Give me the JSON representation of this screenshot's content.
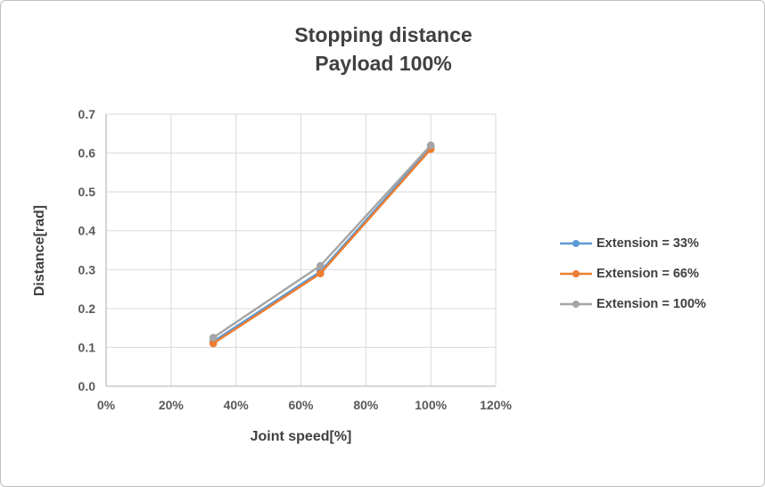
{
  "chart_data": {
    "type": "line",
    "title": "Stopping distance",
    "subtitle": "Payload 100%",
    "xlabel": "Joint speed[%]",
    "ylabel": "Distance[rad]",
    "xlim": [
      0,
      120
    ],
    "ylim": [
      0,
      0.7
    ],
    "x_ticks": [
      0,
      20,
      40,
      60,
      80,
      100,
      120
    ],
    "x_tick_labels": [
      "0%",
      "20%",
      "40%",
      "60%",
      "80%",
      "100%",
      "120%"
    ],
    "y_ticks": [
      0,
      0.1,
      0.2,
      0.3,
      0.4,
      0.5,
      0.6,
      0.7
    ],
    "y_tick_labels": [
      "0.0",
      "0.1",
      "0.2",
      "0.3",
      "0.4",
      "0.5",
      "0.6",
      "0.7"
    ],
    "grid": true,
    "legend_position": "right",
    "x": [
      33,
      66,
      100
    ],
    "series": [
      {
        "name": "Extension = 33%",
        "color": "#5B9BD5",
        "values": [
          0.115,
          0.295,
          0.615
        ]
      },
      {
        "name": "Extension = 66%",
        "color": "#ED7D31",
        "values": [
          0.11,
          0.29,
          0.61
        ]
      },
      {
        "name": "Extension = 100%",
        "color": "#A5A5A5",
        "values": [
          0.125,
          0.31,
          0.62
        ]
      }
    ],
    "grid_color": "#d9d9d9",
    "axis_color": "#bfbfbf",
    "tick_color": "#595959",
    "title_color": "#404040"
  }
}
